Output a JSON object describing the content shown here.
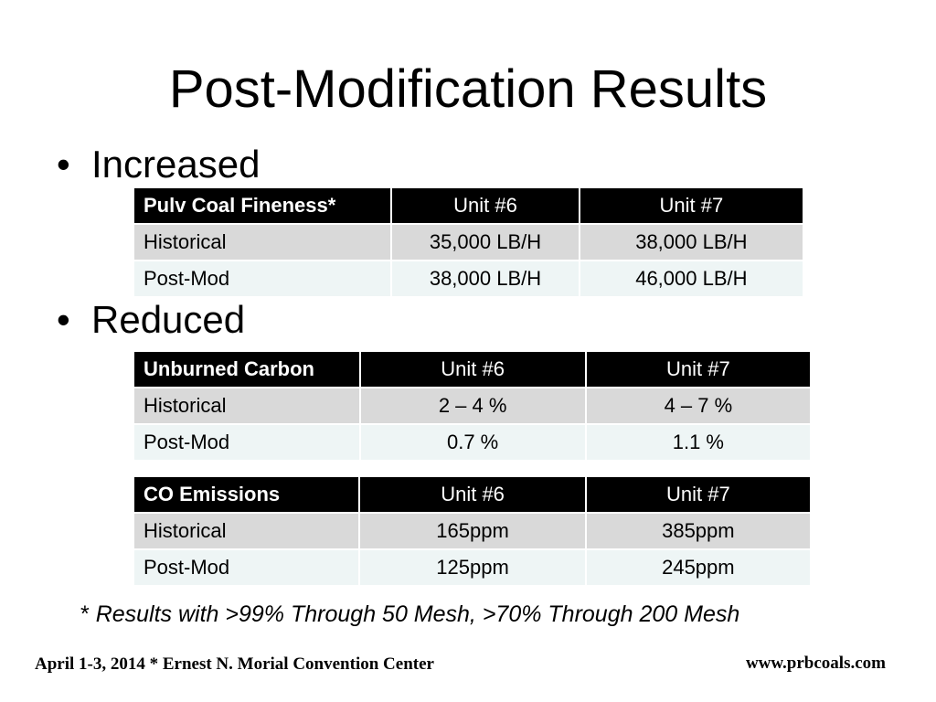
{
  "title": "Post-Modification Results",
  "bullets": {
    "marker": "•",
    "increased": "Increased",
    "reduced": "Reduced"
  },
  "tables": [
    {
      "header": [
        "Pulv Coal Fineness*",
        "Unit #6",
        "Unit #7"
      ],
      "rows": [
        [
          "Historical",
          "35,000 LB/H",
          "38,000 LB/H"
        ],
        [
          "Post-Mod",
          "38,000 LB/H",
          "46,000 LB/H"
        ]
      ]
    },
    {
      "header": [
        "Unburned Carbon",
        "Unit #6",
        "Unit #7"
      ],
      "rows": [
        [
          "Historical",
          "2 – 4 %",
          "4 – 7 %"
        ],
        [
          "Post-Mod",
          "0.7 %",
          "1.1 %"
        ]
      ]
    },
    {
      "header": [
        "CO Emissions",
        "Unit #6",
        "Unit #7"
      ],
      "rows": [
        [
          "Historical",
          "165ppm",
          "385ppm"
        ],
        [
          "Post-Mod",
          "125ppm",
          "245ppm"
        ]
      ]
    }
  ],
  "footnote": {
    "marker": "*",
    "text": "Results with >99% Through 50 Mesh, >70% Through 200 Mesh"
  },
  "footer": {
    "left": "April 1-3, 2014 * Ernest N. Morial Convention Center",
    "right": "www.prbcoals.com"
  },
  "colors": {
    "header_bg": "#000000",
    "row_historical": "#d9d9d9",
    "row_postmod": "#eef5f5"
  }
}
